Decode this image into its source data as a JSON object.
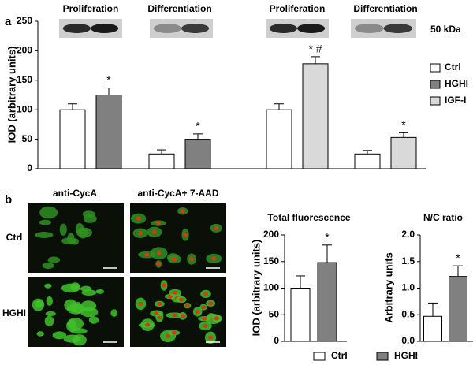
{
  "panels": {
    "a": "a",
    "b": "b"
  },
  "blot_marker": "50 kDa",
  "micrographs": {
    "columns": [
      "anti-CycA",
      "anti-CycA+ 7-AAD"
    ],
    "rows": [
      "Ctrl",
      "HGHI"
    ]
  },
  "legend_b": [
    {
      "name": "Ctrl",
      "color": "#ffffff"
    },
    {
      "name": "HGHI",
      "color": "#808080"
    }
  ],
  "chart_data": [
    {
      "type": "bar",
      "y_label": "IOD (arbitrary units)",
      "categories": [
        "Proliferation",
        "Differentiation",
        "Proliferation",
        "Differentiation"
      ],
      "series": [
        {
          "name": "Ctrl",
          "color": "#ffffff",
          "values": [
            100,
            25,
            100,
            25
          ],
          "errors": [
            10,
            7,
            10,
            6
          ],
          "markers": [
            null,
            null,
            null,
            null
          ]
        },
        {
          "name": "HGHI",
          "color": "#808080",
          "values": [
            125,
            50,
            null,
            null
          ],
          "errors": [
            12,
            9,
            null,
            null
          ],
          "markers": [
            "*",
            "*",
            null,
            null
          ]
        },
        {
          "name": "IGF-I",
          "color": "#d9d9d9",
          "values": [
            null,
            null,
            178,
            53
          ],
          "errors": [
            null,
            null,
            12,
            8
          ],
          "markers": [
            null,
            null,
            "* #",
            "*"
          ]
        }
      ],
      "ylim": [
        0,
        250
      ],
      "yticks": [
        0,
        50,
        100,
        150,
        200,
        250
      ],
      "legend": "right"
    },
    {
      "type": "bar",
      "title": "Total fluorescence",
      "y_label": "IOD (arbitrary units)",
      "series": [
        {
          "color": "#ffffff",
          "values": [
            100
          ],
          "errors": [
            23
          ],
          "markers": [
            null
          ]
        },
        {
          "color": "#808080",
          "values": [
            148
          ],
          "errors": [
            33
          ],
          "markers": [
            "*"
          ]
        }
      ],
      "ylim": [
        0,
        200
      ],
      "yticks": [
        0,
        50,
        100,
        150,
        200
      ]
    },
    {
      "type": "bar",
      "title": "N/C ratio",
      "y_label": "Arbitrary units",
      "series": [
        {
          "color": "#ffffff",
          "values": [
            0.47
          ],
          "errors": [
            0.25
          ],
          "markers": [
            null
          ]
        },
        {
          "color": "#808080",
          "values": [
            1.22
          ],
          "errors": [
            0.2
          ],
          "markers": [
            "*"
          ]
        }
      ],
      "ylim": [
        0,
        2
      ],
      "yticks": [
        {
          "value": 0,
          "label": "0.0"
        },
        0.5,
        {
          "value": 1,
          "label": "1.0"
        },
        1.5,
        {
          "value": 2,
          "label": "2.0"
        }
      ]
    }
  ]
}
